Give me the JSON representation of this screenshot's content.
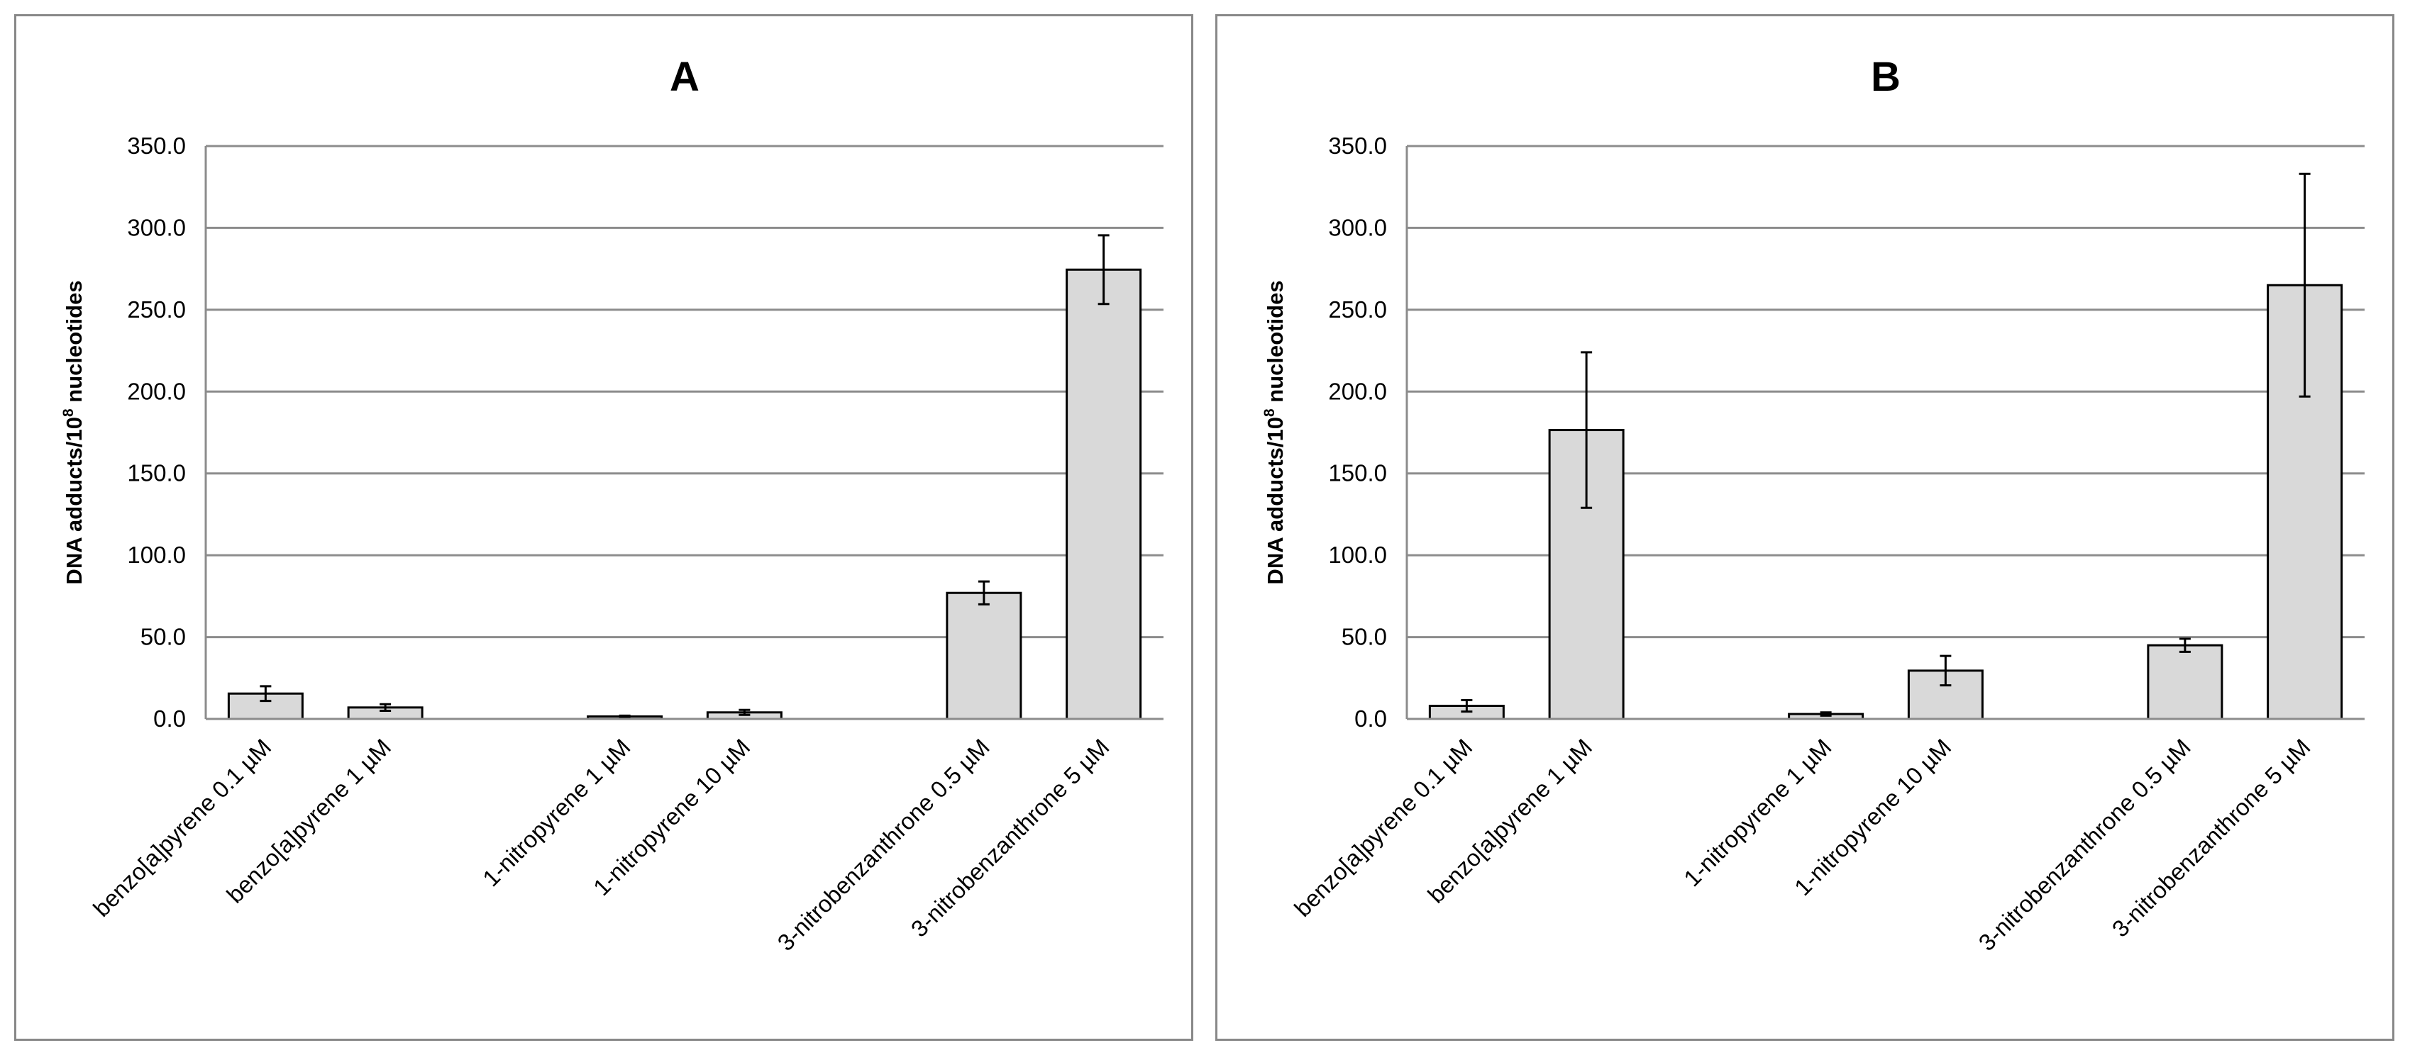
{
  "chart_data": [
    {
      "type": "bar",
      "title": "A",
      "ylabel": "DNA adducts/10",
      "ylabel_sup": "8",
      "ylabel_suffix": " nucleotides",
      "ylim": [
        0,
        350
      ],
      "ytick_labels": [
        "0.0",
        "50.0",
        "100.0",
        "150.0",
        "200.0",
        "250.0",
        "300.0",
        "350.0"
      ],
      "grid": true,
      "bar_color": "#d9d9d9",
      "categories": [
        "benzo[a]pyrene 0.1 µM",
        "benzo[a]pyrene 1 µM",
        "",
        "1-nitropyrene 1 µM",
        "1-nitropyrene 10 µM",
        "",
        "3-nitrobenzanthrone 0.5 µM",
        "3-nitrobenzanthrone 5 µM"
      ],
      "values": [
        15.5,
        7.0,
        null,
        1.5,
        4.0,
        null,
        77.0,
        274.5
      ],
      "errors": [
        4.5,
        2.0,
        null,
        0.5,
        1.5,
        null,
        7.0,
        21.0
      ]
    },
    {
      "type": "bar",
      "title": "B",
      "ylabel": "DNA adducts/10",
      "ylabel_sup": "8",
      "ylabel_suffix": " nucleotides",
      "ylim": [
        0,
        350
      ],
      "ytick_labels": [
        "0.0",
        "50.0",
        "100.0",
        "150.0",
        "200.0",
        "250.0",
        "300.0",
        "350.0"
      ],
      "grid": true,
      "bar_color": "#d9d9d9",
      "categories": [
        "benzo[a]pyrene 0.1 µM",
        "benzo[a]pyrene 1 µM",
        "",
        "1-nitropyrene 1 µM",
        "1-nitropyrene 10 µM",
        "",
        "3-nitrobenzanthrone 0.5 µM",
        "3-nitrobenzanthrone 5 µM"
      ],
      "values": [
        8.0,
        176.5,
        null,
        3.0,
        29.5,
        null,
        45.0,
        265.0
      ],
      "errors": [
        3.5,
        47.5,
        null,
        1.0,
        9.0,
        null,
        4.0,
        68.0
      ]
    }
  ]
}
